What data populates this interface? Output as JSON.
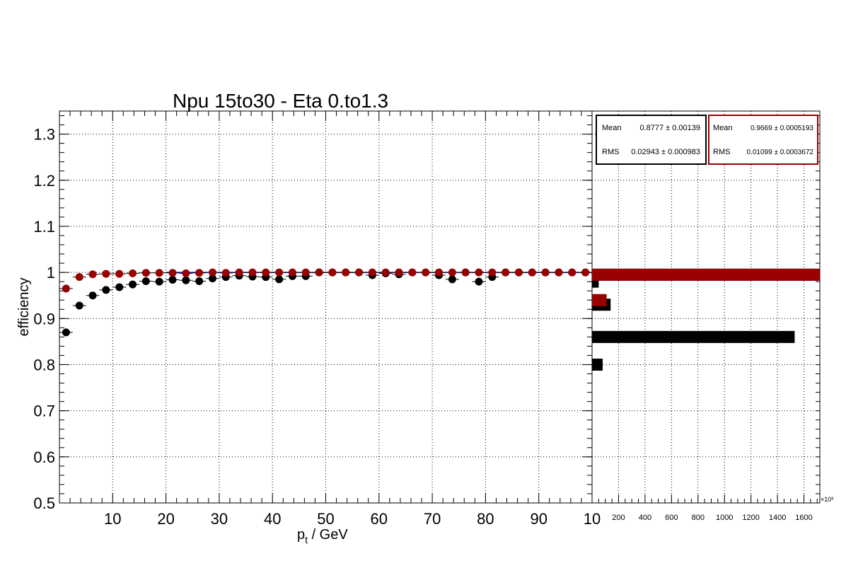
{
  "chart_data": [
    {
      "type": "scatter",
      "title": "Npu 15to30 - Eta 0.to1.3",
      "xlabel": "p_t / GeV",
      "ylabel": "efficiency",
      "xlim": [
        0,
        100
      ],
      "ylim": [
        0.5,
        1.35
      ],
      "grid": true,
      "x_tick_labels": [
        "10",
        "20",
        "30",
        "40",
        "50",
        "60",
        "70",
        "80",
        "90",
        "10"
      ],
      "y_tick_labels": [
        "0.5",
        "0.6",
        "0.7",
        "0.8",
        "0.9",
        "1",
        "1.1",
        "1.2",
        "1.3"
      ],
      "colors": {
        "black_series": "#000000",
        "red_series": "#990000",
        "fit_line": "#0000cc"
      },
      "series": [
        {
          "color": "#000000",
          "x": [
            1.25,
            3.75,
            6.25,
            8.75,
            11.25,
            13.75,
            16.25,
            18.75,
            21.25,
            23.75,
            26.25,
            28.75,
            31.25,
            33.75,
            36.25,
            38.75,
            41.25,
            43.75,
            46.25,
            48.75,
            51.25,
            53.75,
            56.25,
            58.75,
            61.25,
            63.75,
            66.25,
            68.75,
            71.25,
            73.75,
            76.25,
            78.75,
            81.25,
            83.75,
            86.25,
            88.75,
            91.25,
            93.75,
            96.25,
            98.75
          ],
          "y": [
            0.87,
            0.928,
            0.95,
            0.962,
            0.968,
            0.974,
            0.981,
            0.98,
            0.984,
            0.983,
            0.981,
            0.987,
            0.99,
            0.993,
            0.991,
            0.99,
            0.985,
            0.992,
            0.992,
            1.0,
            1.0,
            1.0,
            1.0,
            0.994,
            0.998,
            0.996,
            1.0,
            1.0,
            0.994,
            0.985,
            1.0,
            0.98,
            0.99,
            1.0,
            1.0,
            1.0,
            1.0,
            1.0,
            1.0,
            1.0
          ]
        },
        {
          "color": "#990000",
          "x": [
            1.25,
            3.75,
            6.25,
            8.75,
            11.25,
            13.75,
            16.25,
            18.75,
            21.25,
            23.75,
            26.25,
            28.75,
            31.25,
            33.75,
            36.25,
            38.75,
            41.25,
            43.75,
            46.25,
            48.75,
            51.25,
            53.75,
            56.25,
            58.75,
            61.25,
            63.75,
            66.25,
            68.75,
            71.25,
            73.75,
            76.25,
            78.75,
            81.25,
            83.75,
            86.25,
            88.75,
            91.25,
            93.75,
            96.25,
            98.75
          ],
          "y": [
            0.965,
            0.99,
            0.996,
            0.997,
            0.997,
            0.998,
            0.999,
            0.999,
            0.999,
            0.998,
            0.999,
            1.0,
            0.999,
            1.0,
            1.0,
            1.0,
            1.0,
            1.0,
            1.0,
            1.0,
            1.0,
            1.0,
            1.0,
            1.0,
            1.0,
            1.0,
            1.0,
            1.0,
            1.0,
            1.0,
            1.0,
            1.0,
            1.0,
            1.0,
            1.0,
            1.0,
            1.0,
            1.0,
            1.0,
            1.0
          ]
        }
      ],
      "fit_line_y": 1.0
    },
    {
      "type": "bar",
      "orientation": "horizontal",
      "x_tick_labels": [
        "200",
        "400",
        "600",
        "800",
        "1000",
        "1200",
        "1400",
        "1600"
      ],
      "x_exponent_label": "×10³",
      "xlim": [
        0,
        1720
      ],
      "ylim": [
        0.5,
        1.35
      ],
      "series": [
        {
          "color": "#000000",
          "bins": [
            {
              "y": 0.8,
              "value": 80
            },
            {
              "y": 0.86,
              "value": 1530
            },
            {
              "y": 0.93,
              "value": 140
            },
            {
              "y": 0.98,
              "value": 50
            },
            {
              "y": 0.995,
              "value": 1720
            }
          ]
        },
        {
          "color": "#990000",
          "bins": [
            {
              "y": 0.94,
              "value": 110
            },
            {
              "y": 0.995,
              "value": 1720
            }
          ]
        }
      ],
      "stats_boxes": [
        {
          "color": "#000000",
          "mean_label": "Mean",
          "mean_value": "0.8777 ± 0.00139",
          "rms_label": "RMS",
          "rms_value": "0.02943 ± 0.000983"
        },
        {
          "color": "#990000",
          "mean_label": "Mean",
          "mean_value": "0.9669 ± 0.0005193",
          "rms_label": "RMS",
          "rms_value": "0.01099 ± 0.0003672"
        }
      ]
    }
  ]
}
